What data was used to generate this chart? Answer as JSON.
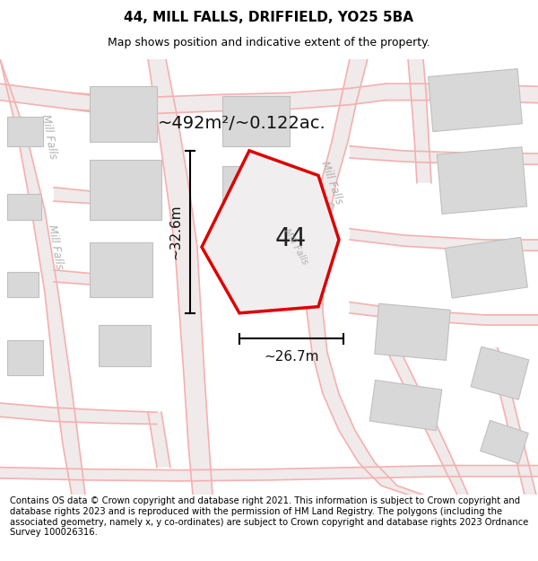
{
  "title": "44, MILL FALLS, DRIFFIELD, YO25 5BA",
  "subtitle": "Map shows position and indicative extent of the property.",
  "footer": "Contains OS data © Crown copyright and database right 2021. This information is subject to Crown copyright and database rights 2023 and is reproduced with the permission of HM Land Registry. The polygons (including the associated geometry, namely x, y co-ordinates) are subject to Crown copyright and database rights 2023 Ordnance Survey 100026316.",
  "area_label": "~492m²/~0.122ac.",
  "width_label": "~26.7m",
  "height_label": "~32.6m",
  "plot_number": "44",
  "bg_color": "#ffffff",
  "road_color": "#f5b0b0",
  "road_fill": "#f9f0f0",
  "building_color": "#d8d8d8",
  "building_edge": "#c0c0c0",
  "plot_outline_color": "#dd0000",
  "road_label_color": "#b0b0b0",
  "dim_color": "#000000",
  "title_fontsize": 11,
  "subtitle_fontsize": 9,
  "footer_fontsize": 7.2,
  "label_fontsize": 11,
  "plot_label_fontsize": 20,
  "area_label_fontsize": 14,
  "figsize": [
    6.0,
    6.25
  ],
  "dpi": 100
}
